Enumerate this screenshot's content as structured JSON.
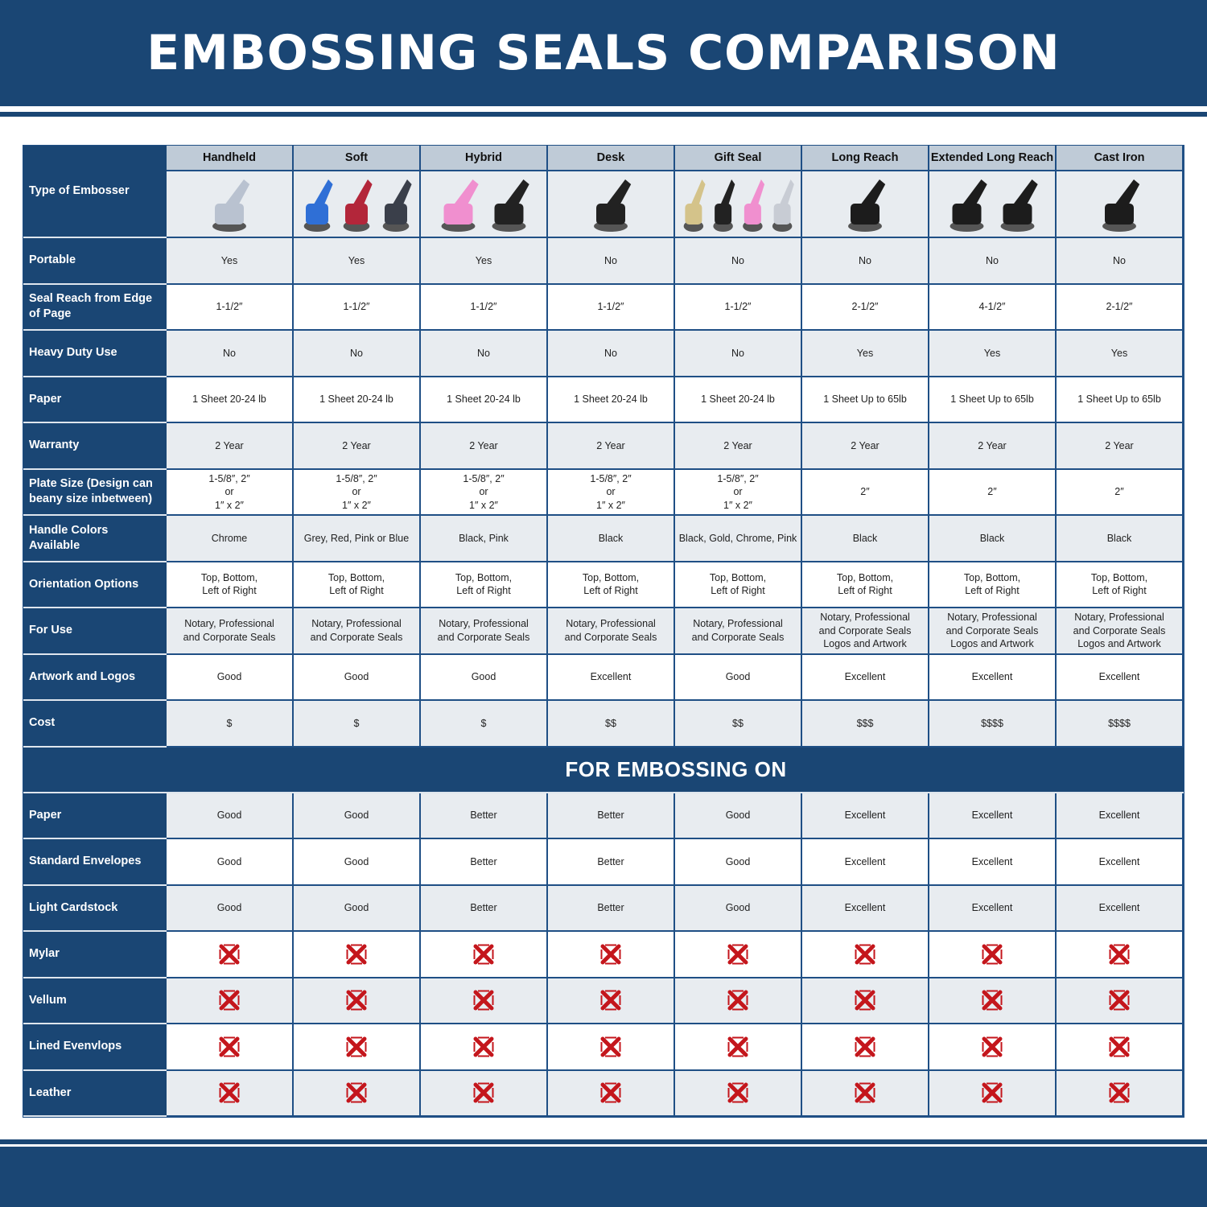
{
  "title": "EMBOSSING SEALS COMPARISON",
  "colors": {
    "brand": "#1a4674",
    "header_cell": "#bfcbd7",
    "alt_row": "#e8ecf0",
    "x_mark": "#c4161c"
  },
  "type_label": "Type of Embosser",
  "columns": [
    {
      "name": "Handheld",
      "image_colors": [
        "#b9c2d0"
      ]
    },
    {
      "name": "Soft",
      "image_colors": [
        "#2f6fd6",
        "#b3263a",
        "#3a3f4a"
      ]
    },
    {
      "name": "Hybrid",
      "image_colors": [
        "#f08fcf",
        "#222222"
      ]
    },
    {
      "name": "Desk",
      "image_colors": [
        "#222222"
      ]
    },
    {
      "name": "Gift Seal",
      "image_colors": [
        "#d4c38a",
        "#222222",
        "#f08fcf",
        "#c8ccd4"
      ]
    },
    {
      "name": "Long Reach",
      "image_colors": [
        "#1c1c1c"
      ]
    },
    {
      "name": "Extended Long Reach",
      "image_colors": [
        "#1c1c1c",
        "#1c1c1c"
      ]
    },
    {
      "name": "Cast Iron",
      "image_colors": [
        "#1c1c1c"
      ]
    }
  ],
  "rows": [
    {
      "label": "Portable",
      "values": [
        "Yes",
        "Yes",
        "Yes",
        "No",
        "No",
        "No",
        "No",
        "No"
      ]
    },
    {
      "label": "Seal Reach from Edge of Page",
      "values": [
        "1-1/2″",
        "1-1/2″",
        "1-1/2″",
        "1-1/2″",
        "1-1/2″",
        "2-1/2″",
        "4-1/2″",
        "2-1/2″"
      ]
    },
    {
      "label": "Heavy Duty Use",
      "values": [
        "No",
        "No",
        "No",
        "No",
        "No",
        "Yes",
        "Yes",
        "Yes"
      ]
    },
    {
      "label": "Paper",
      "values": [
        "1 Sheet 20-24 lb",
        "1 Sheet 20-24 lb",
        "1 Sheet 20-24 lb",
        "1 Sheet 20-24 lb",
        "1 Sheet 20-24 lb",
        "1 Sheet Up to 65lb",
        "1 Sheet Up to 65lb",
        "1 Sheet Up to 65lb"
      ]
    },
    {
      "label": "Warranty",
      "values": [
        "2 Year",
        "2 Year",
        "2 Year",
        "2 Year",
        "2 Year",
        "2 Year",
        "2 Year",
        "2 Year"
      ]
    },
    {
      "label": "Plate Size (Design can beany size inbetween)",
      "values": [
        "1-5/8″, 2″\nor\n1″ x 2″",
        "1-5/8″, 2″\nor\n1″ x 2″",
        "1-5/8″, 2″\nor\n1″ x 2″",
        "1-5/8″, 2″\nor\n1″ x 2″",
        "1-5/8″, 2″\nor\n1″ x 2″",
        "2″",
        "2″",
        "2″"
      ]
    },
    {
      "label": "Handle Colors Available",
      "values": [
        "Chrome",
        "Grey, Red, Pink or Blue",
        "Black, Pink",
        "Black",
        "Black, Gold, Chrome, Pink",
        "Black",
        "Black",
        "Black"
      ]
    },
    {
      "label": "Orientation Options",
      "values": [
        "Top, Bottom,\nLeft of Right",
        "Top, Bottom,\nLeft of Right",
        "Top, Bottom,\nLeft of Right",
        "Top, Bottom,\nLeft of Right",
        "Top, Bottom,\nLeft of Right",
        "Top, Bottom,\nLeft of Right",
        "Top, Bottom,\nLeft of Right",
        "Top, Bottom,\nLeft of Right"
      ]
    },
    {
      "label": "For Use",
      "values": [
        "Notary, Professional\nand Corporate Seals",
        "Notary, Professional\nand Corporate Seals",
        "Notary, Professional\nand Corporate Seals",
        "Notary, Professional\nand Corporate Seals",
        "Notary, Professional\nand Corporate Seals",
        "Notary, Professional\nand Corporate Seals\nLogos and Artwork",
        "Notary, Professional\nand Corporate Seals\nLogos and Artwork",
        "Notary, Professional\nand Corporate Seals\nLogos and Artwork"
      ]
    },
    {
      "label": "Artwork and Logos",
      "values": [
        "Good",
        "Good",
        "Good",
        "Excellent",
        "Good",
        "Excellent",
        "Excellent",
        "Excellent"
      ]
    },
    {
      "label": "Cost",
      "values": [
        "$",
        "$",
        "$",
        "$$",
        "$$",
        "$$$",
        "$$$$",
        "$$$$"
      ]
    }
  ],
  "section_title": "FOR EMBOSSING ON",
  "surface_rows": [
    {
      "label": "Paper",
      "values": [
        "Good",
        "Good",
        "Better",
        "Better",
        "Good",
        "Excellent",
        "Excellent",
        "Excellent"
      ]
    },
    {
      "label": "Standard Envelopes",
      "values": [
        "Good",
        "Good",
        "Better",
        "Better",
        "Good",
        "Excellent",
        "Excellent",
        "Excellent"
      ]
    },
    {
      "label": "Light Cardstock",
      "values": [
        "Good",
        "Good",
        "Better",
        "Better",
        "Good",
        "Excellent",
        "Excellent",
        "Excellent"
      ]
    },
    {
      "label": "Mylar",
      "values": [
        "x",
        "x",
        "x",
        "x",
        "x",
        "x",
        "x",
        "x"
      ]
    },
    {
      "label": "Vellum",
      "values": [
        "x",
        "x",
        "x",
        "x",
        "x",
        "x",
        "x",
        "x"
      ]
    },
    {
      "label": "Lined Evenvlops",
      "values": [
        "x",
        "x",
        "x",
        "x",
        "x",
        "x",
        "x",
        "x"
      ]
    },
    {
      "label": "Leather",
      "values": [
        "x",
        "x",
        "x",
        "x",
        "x",
        "x",
        "x",
        "x"
      ]
    }
  ]
}
